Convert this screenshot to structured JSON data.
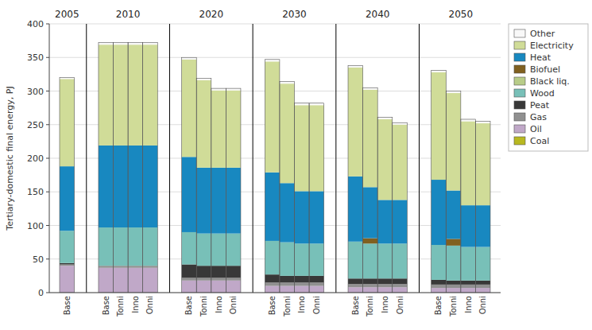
{
  "chart_data": {
    "type": "bar",
    "stacked": true,
    "grid": true,
    "legend": "upper right",
    "ylabel": "Tertiary-domestic final energy, PJ",
    "ylim": [
      0,
      400
    ],
    "yticks": [
      0,
      50,
      100,
      150,
      200,
      250,
      300,
      350,
      400
    ],
    "groups": [
      {
        "name": "2005",
        "size": 1
      },
      {
        "name": "2010",
        "size": 4
      },
      {
        "name": "2020",
        "size": 4
      },
      {
        "name": "2030",
        "size": 4
      },
      {
        "name": "2040",
        "size": 4
      },
      {
        "name": "2050",
        "size": 4
      }
    ],
    "categories": [
      "Base",
      "Base",
      "Tonni",
      "Inno",
      "Onni",
      "Base",
      "Tonni",
      "Inno",
      "Onni",
      "Base",
      "Tonni",
      "Inno",
      "Onni",
      "Base",
      "Tonni",
      "Inno",
      "Onni",
      "Base",
      "Tonni",
      "Inno",
      "Onni"
    ],
    "series": [
      {
        "name": "Coal",
        "color": "#b8b820",
        "values": [
          0,
          0,
          0,
          0,
          0,
          0,
          0,
          0,
          0,
          0,
          0,
          0,
          0,
          0,
          0,
          0,
          0,
          0,
          0,
          0,
          0
        ]
      },
      {
        "name": "Oil",
        "color": "#c0a8c8",
        "values": [
          40,
          37,
          37,
          37,
          37,
          18,
          18,
          18,
          18,
          10,
          10,
          10,
          10,
          8,
          8,
          8,
          8,
          7,
          7,
          7,
          7
        ]
      },
      {
        "name": "Gas",
        "color": "#909090",
        "values": [
          2,
          3,
          3,
          3,
          3,
          4,
          4,
          4,
          4,
          5,
          5,
          5,
          5,
          5,
          5,
          5,
          5,
          5,
          5,
          5,
          5
        ]
      },
      {
        "name": "Peat",
        "color": "#383838",
        "values": [
          2,
          0,
          0,
          0,
          0,
          20,
          18,
          18,
          18,
          12,
          10,
          10,
          10,
          8,
          8,
          8,
          8,
          7,
          6,
          6,
          6
        ]
      },
      {
        "name": "Wood",
        "color": "#78c0b8",
        "values": [
          48,
          57,
          57,
          57,
          57,
          48,
          48,
          48,
          48,
          50,
          50,
          48,
          48,
          55,
          52,
          52,
          52,
          52,
          52,
          50,
          50
        ]
      },
      {
        "name": "Black liq.",
        "color": "#b8cc88",
        "values": [
          0,
          0,
          0,
          0,
          0,
          0,
          0,
          0,
          0,
          0,
          0,
          0,
          0,
          0,
          0,
          0,
          0,
          0,
          0,
          0,
          0
        ]
      },
      {
        "name": "Biofuel",
        "color": "#806020",
        "values": [
          0,
          0,
          0,
          0,
          0,
          0,
          0,
          0,
          0,
          0,
          0,
          0,
          0,
          0,
          8,
          0,
          0,
          0,
          10,
          0,
          0
        ]
      },
      {
        "name": "Heat",
        "color": "#1888c0",
        "values": [
          96,
          122,
          122,
          122,
          122,
          112,
          98,
          98,
          98,
          102,
          88,
          78,
          78,
          97,
          76,
          65,
          65,
          97,
          72,
          62,
          62
        ]
      },
      {
        "name": "Electricity",
        "color": "#d0dc98",
        "values": [
          130,
          150,
          150,
          150,
          150,
          145,
          130,
          115,
          115,
          165,
          148,
          128,
          128,
          162,
          145,
          120,
          112,
          160,
          145,
          125,
          122
        ]
      },
      {
        "name": "Other",
        "color": "#f8f8f8",
        "values": [
          2,
          3,
          3,
          3,
          3,
          3,
          3,
          3,
          3,
          3,
          3,
          3,
          3,
          3,
          3,
          3,
          3,
          3,
          3,
          3,
          3
        ]
      }
    ]
  }
}
